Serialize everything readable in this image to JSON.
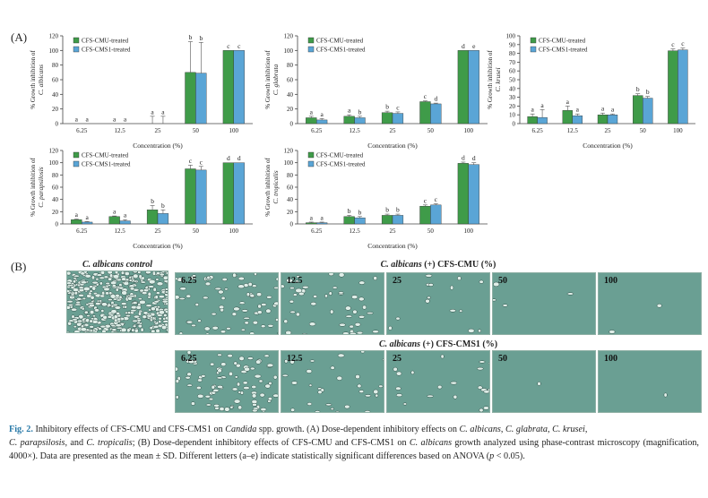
{
  "panel_a_label": "(A)",
  "panel_b_label": "(B)",
  "legend": [
    "CFS-CMU-treated",
    "CFS-CMS1-treated"
  ],
  "colors": {
    "cmu": "#3f9b49",
    "cms1": "#5aa5d6",
    "axis": "#444444"
  },
  "chart_data": [
    {
      "type": "bar",
      "species": "C. albicans",
      "ylabel": "% Growth inhibition of C. albicans",
      "xlabel": "Concentration (%)",
      "categories": [
        "6.25",
        "12.5",
        "25",
        "50",
        "100"
      ],
      "ylim": [
        0,
        120
      ],
      "yticks": [
        0,
        20,
        40,
        60,
        80,
        100,
        120
      ],
      "series": [
        {
          "name": "CFS-CMU-treated",
          "values": [
            0,
            0,
            0,
            70,
            100
          ],
          "errors": [
            0,
            0,
            10,
            42,
            0
          ],
          "letters": [
            "a",
            "a",
            "a",
            "b",
            "c"
          ]
        },
        {
          "name": "CFS-CMS1-treated",
          "values": [
            0,
            0,
            0,
            69,
            100
          ],
          "errors": [
            0,
            0,
            10,
            42,
            0
          ],
          "letters": [
            "a",
            "a",
            "a",
            "b",
            "c"
          ]
        }
      ]
    },
    {
      "type": "bar",
      "species": "C. glabrata",
      "ylabel": "% Growth inhibition of C. glabrata",
      "xlabel": "Concentration (%)",
      "categories": [
        "6.25",
        "12.5",
        "25",
        "50",
        "100"
      ],
      "ylim": [
        0,
        120
      ],
      "yticks": [
        0,
        20,
        40,
        60,
        80,
        100,
        120
      ],
      "series": [
        {
          "name": "CFS-CMU-treated",
          "values": [
            8,
            10,
            15,
            30,
            100
          ],
          "errors": [
            2,
            2,
            2,
            1,
            0
          ],
          "letters": [
            "a",
            "a",
            "b",
            "c",
            "d"
          ]
        },
        {
          "name": "CFS-CMS1-treated",
          "values": [
            5,
            8,
            14,
            27,
            100
          ],
          "errors": [
            2,
            2,
            2,
            1,
            0
          ],
          "letters": [
            "a",
            "b",
            "c",
            "d",
            "e"
          ]
        }
      ]
    },
    {
      "type": "bar",
      "species": "C. krusei",
      "ylabel": "% Growth inhibition of C. krusei",
      "xlabel": "Concentration (%)",
      "categories": [
        "6.25",
        "12.5",
        "25",
        "50",
        "100"
      ],
      "ylim": [
        0,
        100
      ],
      "yticks": [
        0,
        10,
        20,
        30,
        40,
        50,
        60,
        70,
        80,
        90,
        100
      ],
      "series": [
        {
          "name": "CFS-CMU-treated",
          "values": [
            8,
            15,
            10,
            32,
            83
          ],
          "errors": [
            3,
            5,
            2,
            2,
            2
          ],
          "letters": [
            "a",
            "a",
            "a",
            "b",
            "c"
          ]
        },
        {
          "name": "CFS-CMS1-treated",
          "values": [
            7,
            9,
            10,
            29,
            84
          ],
          "errors": [
            9,
            2,
            1,
            2,
            2
          ],
          "letters": [
            "a",
            "a",
            "a",
            "b",
            "c"
          ]
        }
      ]
    },
    {
      "type": "bar",
      "species": "C. parapsilosis",
      "ylabel": "% Growth inhibition of C. parapsilosis",
      "xlabel": "Concentration (%)",
      "categories": [
        "6.25",
        "12.5",
        "25",
        "50",
        "100"
      ],
      "ylim": [
        0,
        120
      ],
      "yticks": [
        0,
        20,
        40,
        60,
        80,
        100,
        120
      ],
      "series": [
        {
          "name": "CFS-CMU-treated",
          "values": [
            7,
            12,
            23,
            90,
            100
          ],
          "errors": [
            1,
            1,
            7,
            6,
            0
          ],
          "letters": [
            "a",
            "a",
            "b",
            "c",
            "d"
          ]
        },
        {
          "name": "CFS-CMS1-treated",
          "values": [
            3,
            5,
            17,
            88,
            100
          ],
          "errors": [
            1,
            2,
            6,
            6,
            0
          ],
          "letters": [
            "a",
            "a",
            "b",
            "c",
            "d"
          ]
        }
      ]
    },
    {
      "type": "bar",
      "species": "C. tropicalis",
      "ylabel": "% Growth inhibition of C. tropicalis",
      "xlabel": "Concentration (%)",
      "categories": [
        "6.25",
        "12.5",
        "25",
        "50",
        "100"
      ],
      "ylim": [
        0,
        120
      ],
      "yticks": [
        0,
        20,
        40,
        60,
        80,
        100,
        120
      ],
      "series": [
        {
          "name": "CFS-CMU-treated",
          "values": [
            2,
            12,
            14,
            29,
            99
          ],
          "errors": [
            1,
            2,
            2,
            2,
            2
          ],
          "letters": [
            "a",
            "b",
            "b",
            "c",
            "d"
          ]
        },
        {
          "name": "CFS-CMS1-treated",
          "values": [
            2,
            10,
            14,
            31,
            97
          ],
          "errors": [
            1,
            2,
            2,
            2,
            3
          ],
          "letters": [
            "a",
            "b",
            "b",
            "c",
            "d"
          ]
        }
      ]
    }
  ],
  "micrographs": {
    "control_title": "C. albicans control",
    "cmu_title_species": "C. albicans",
    "cmu_title_rest": " (+) CFS-CMU (%)",
    "cms1_title_species": "C. albicans",
    "cms1_title_rest": " (+) CFS-CMS1 (%)",
    "cmu_labels": [
      "6.25",
      "12.5",
      "25",
      "50",
      "100"
    ],
    "cms1_labels": [
      "6.25",
      "12.5",
      "25",
      "50",
      "100"
    ],
    "background": "#6a9f93"
  },
  "caption": {
    "fig": "Fig. 2.",
    "t1": " Inhibitory effects of CFS-CMU and CFS-CMS1 on ",
    "t1i": "Candida",
    "t2": " spp. growth. (A) Dose-dependent inhibitory effects on ",
    "s1": "C. albicans",
    "c1": ", ",
    "s2": "C. glabrata",
    "c2": ", ",
    "s3": "C. krusei",
    "c3": ", ",
    "s4": "C. parapsilosis",
    "c4": ", and ",
    "s5": "C. tropicalis",
    "t3": "; (B) Dose-dependent inhibitory effects of CFS-CMU and CFS-CMS1 on ",
    "s6": "C. albicans",
    "t4": " growth analyzed using phase-contrast microscopy (magnification, 4000×). Data are presented as the mean ± SD. Different letters (a–e) indicate statistically significant differences based on ANOVA (",
    "p": "p",
    "t5": " < 0.05)."
  }
}
